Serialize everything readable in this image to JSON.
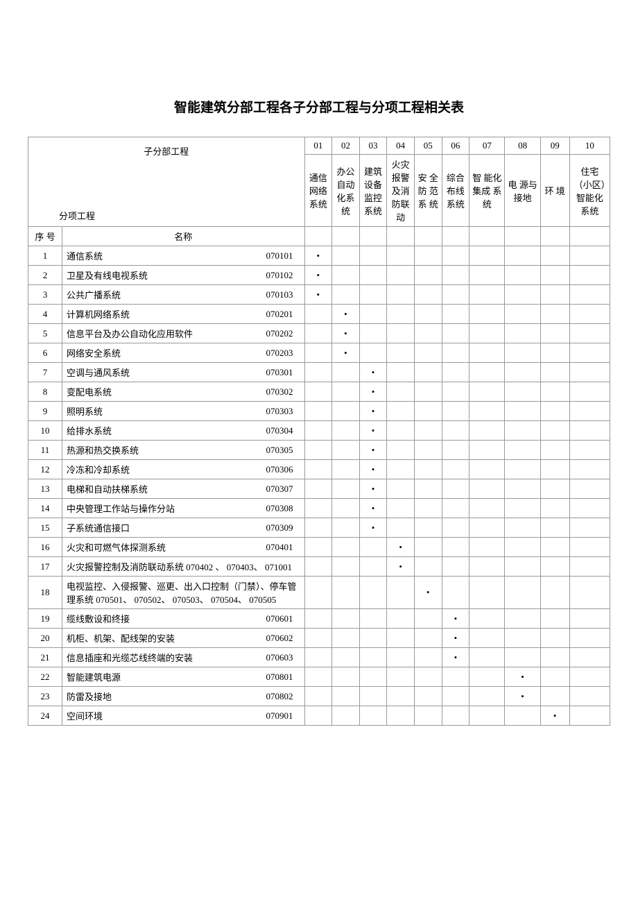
{
  "title": "智能建筑分部工程各子分部工程与分项工程相关表",
  "header": {
    "sub_top": "子分部工程",
    "sub_bottom": "分项工程",
    "seq": "序  号",
    "name": "名称"
  },
  "columns": [
    {
      "num": "01",
      "label": "通信网络系统"
    },
    {
      "num": "02",
      "label": "办公自动化系统"
    },
    {
      "num": "03",
      "label": "建筑设备监控系统"
    },
    {
      "num": "04",
      "label": "火灾报警及消防联动"
    },
    {
      "num": "05",
      "label": "安 全防 范系 统"
    },
    {
      "num": "06",
      "label": "综合布线系统"
    },
    {
      "num": "07",
      "label": "智 能化 集成 系统"
    },
    {
      "num": "08",
      "label": "电 源与 接地"
    },
    {
      "num": "09",
      "label": "环 境"
    },
    {
      "num": "10",
      "label": "住宅（小区）智能化系统"
    }
  ],
  "dot": "•",
  "rows": [
    {
      "seq": "1",
      "label": "通信系统",
      "code": "070101",
      "marks": [
        1,
        0,
        0,
        0,
        0,
        0,
        0,
        0,
        0,
        0
      ]
    },
    {
      "seq": "2",
      "label": "卫星及有线电视系统",
      "code": "070102",
      "marks": [
        1,
        0,
        0,
        0,
        0,
        0,
        0,
        0,
        0,
        0
      ]
    },
    {
      "seq": "3",
      "label": "公共广播系统",
      "code": "070103",
      "marks": [
        1,
        0,
        0,
        0,
        0,
        0,
        0,
        0,
        0,
        0
      ]
    },
    {
      "seq": "4",
      "label": "计算机网络系统",
      "code": "070201",
      "marks": [
        0,
        1,
        0,
        0,
        0,
        0,
        0,
        0,
        0,
        0
      ]
    },
    {
      "seq": "5",
      "label": "信息平台及办公自动化应用软件",
      "code": "070202",
      "marks": [
        0,
        1,
        0,
        0,
        0,
        0,
        0,
        0,
        0,
        0
      ]
    },
    {
      "seq": "6",
      "label": "网络安全系统",
      "code": "070203",
      "marks": [
        0,
        1,
        0,
        0,
        0,
        0,
        0,
        0,
        0,
        0
      ]
    },
    {
      "seq": "7",
      "label": "空调与通风系统",
      "code": "070301",
      "marks": [
        0,
        0,
        1,
        0,
        0,
        0,
        0,
        0,
        0,
        0
      ]
    },
    {
      "seq": "8",
      "label": "变配电系统",
      "code": "070302",
      "marks": [
        0,
        0,
        1,
        0,
        0,
        0,
        0,
        0,
        0,
        0
      ]
    },
    {
      "seq": "9",
      "label": "照明系统",
      "code": "070303",
      "marks": [
        0,
        0,
        1,
        0,
        0,
        0,
        0,
        0,
        0,
        0
      ]
    },
    {
      "seq": "10",
      "label": "给排水系统",
      "code": "070304",
      "marks": [
        0,
        0,
        1,
        0,
        0,
        0,
        0,
        0,
        0,
        0
      ]
    },
    {
      "seq": "11",
      "label": "热源和热交换系统",
      "code": "070305",
      "marks": [
        0,
        0,
        1,
        0,
        0,
        0,
        0,
        0,
        0,
        0
      ]
    },
    {
      "seq": "12",
      "label": "冷冻和冷却系统",
      "code": "070306",
      "marks": [
        0,
        0,
        1,
        0,
        0,
        0,
        0,
        0,
        0,
        0
      ]
    },
    {
      "seq": "13",
      "label": "电梯和自动扶梯系统",
      "code": "070307",
      "marks": [
        0,
        0,
        1,
        0,
        0,
        0,
        0,
        0,
        0,
        0
      ]
    },
    {
      "seq": "14",
      "label": "中央管理工作站与操作分站",
      "code": "070308",
      "marks": [
        0,
        0,
        1,
        0,
        0,
        0,
        0,
        0,
        0,
        0
      ]
    },
    {
      "seq": "15",
      "label": "子系统通信接口",
      "code": "070309",
      "marks": [
        0,
        0,
        1,
        0,
        0,
        0,
        0,
        0,
        0,
        0
      ]
    },
    {
      "seq": "16",
      "label": "火灾和可燃气体探测系统",
      "code": "070401",
      "marks": [
        0,
        0,
        0,
        1,
        0,
        0,
        0,
        0,
        0,
        0
      ]
    },
    {
      "seq": "17",
      "full": "火灾报警控制及消防联动系统                              070402                 、         070403、 071001",
      "marks": [
        0,
        0,
        0,
        1,
        0,
        0,
        0,
        0,
        0,
        0
      ]
    },
    {
      "seq": "18",
      "full": " 电视监控、入侵报警、巡更、出入口控制（门禁）、停车管理系统    070501、 070502、 070503、 070504、 070505",
      "marks": [
        0,
        0,
        0,
        0,
        1,
        0,
        0,
        0,
        0,
        0
      ]
    },
    {
      "seq": "19",
      "label": "缆线敷设和终接",
      "code": "070601",
      "marks": [
        0,
        0,
        0,
        0,
        0,
        1,
        0,
        0,
        0,
        0
      ]
    },
    {
      "seq": "20",
      "label": "机柜、机架、配线架的安装",
      "code": "070602",
      "marks": [
        0,
        0,
        0,
        0,
        0,
        1,
        0,
        0,
        0,
        0
      ]
    },
    {
      "seq": "21",
      "label": "信息插座和光缆芯线终端的安装",
      "code": "070603",
      "marks": [
        0,
        0,
        0,
        0,
        0,
        1,
        0,
        0,
        0,
        0
      ]
    },
    {
      "seq": "22",
      "label": "智能建筑电源",
      "code": "070801",
      "marks": [
        0,
        0,
        0,
        0,
        0,
        0,
        0,
        1,
        0,
        0
      ]
    },
    {
      "seq": "23",
      "label": "防雷及接地",
      "code": "070802",
      "marks": [
        0,
        0,
        0,
        0,
        0,
        0,
        0,
        1,
        0,
        0
      ]
    },
    {
      "seq": "24",
      "label": "空间环境",
      "code": "070901",
      "marks": [
        0,
        0,
        0,
        0,
        0,
        0,
        0,
        0,
        1,
        0
      ]
    }
  ]
}
